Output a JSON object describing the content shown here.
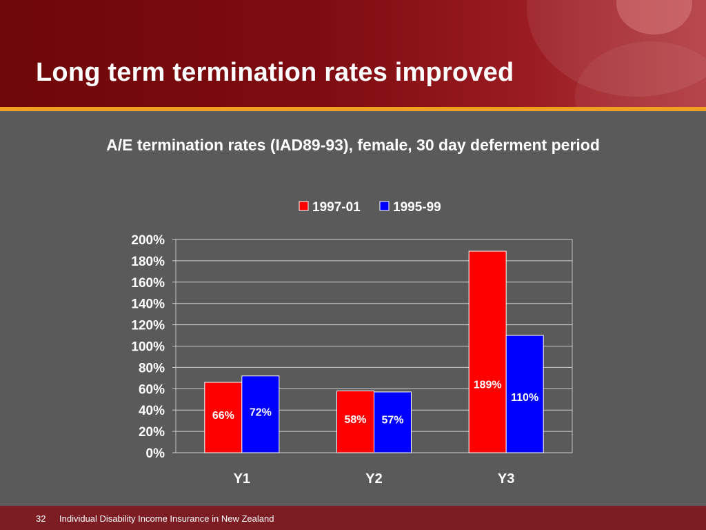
{
  "slide": {
    "title": "Long term termination rates improved",
    "page_number": "32",
    "footer_text": "Individual Disability Income Insurance in New Zealand"
  },
  "colors": {
    "header": "#7d0c10",
    "accent_bar": "#f0a020",
    "background": "#5a5a5a",
    "footer": "#7b1d23"
  },
  "chart_data": {
    "type": "bar",
    "title": "A/E termination rates (IAD89-93), female, 30 day deferment period",
    "categories": [
      "Y1",
      "Y2",
      "Y3"
    ],
    "series": [
      {
        "name": "1997-01",
        "color": "#ff0000",
        "values": [
          66,
          58,
          189
        ],
        "labels": [
          "66%",
          "58%",
          "189%"
        ]
      },
      {
        "name": "1995-99",
        "color": "#0000ff",
        "values": [
          72,
          57,
          110
        ],
        "labels": [
          "72%",
          "57%",
          "110%"
        ]
      }
    ],
    "ylim": [
      0,
      200
    ],
    "yticks": [
      0,
      20,
      40,
      60,
      80,
      100,
      120,
      140,
      160,
      180,
      200
    ],
    "ytick_labels": [
      "0%",
      "20%",
      "40%",
      "60%",
      "80%",
      "100%",
      "120%",
      "140%",
      "160%",
      "180%",
      "200%"
    ],
    "xlabel": "",
    "ylabel": "",
    "grid": true,
    "legend_position": "top"
  }
}
